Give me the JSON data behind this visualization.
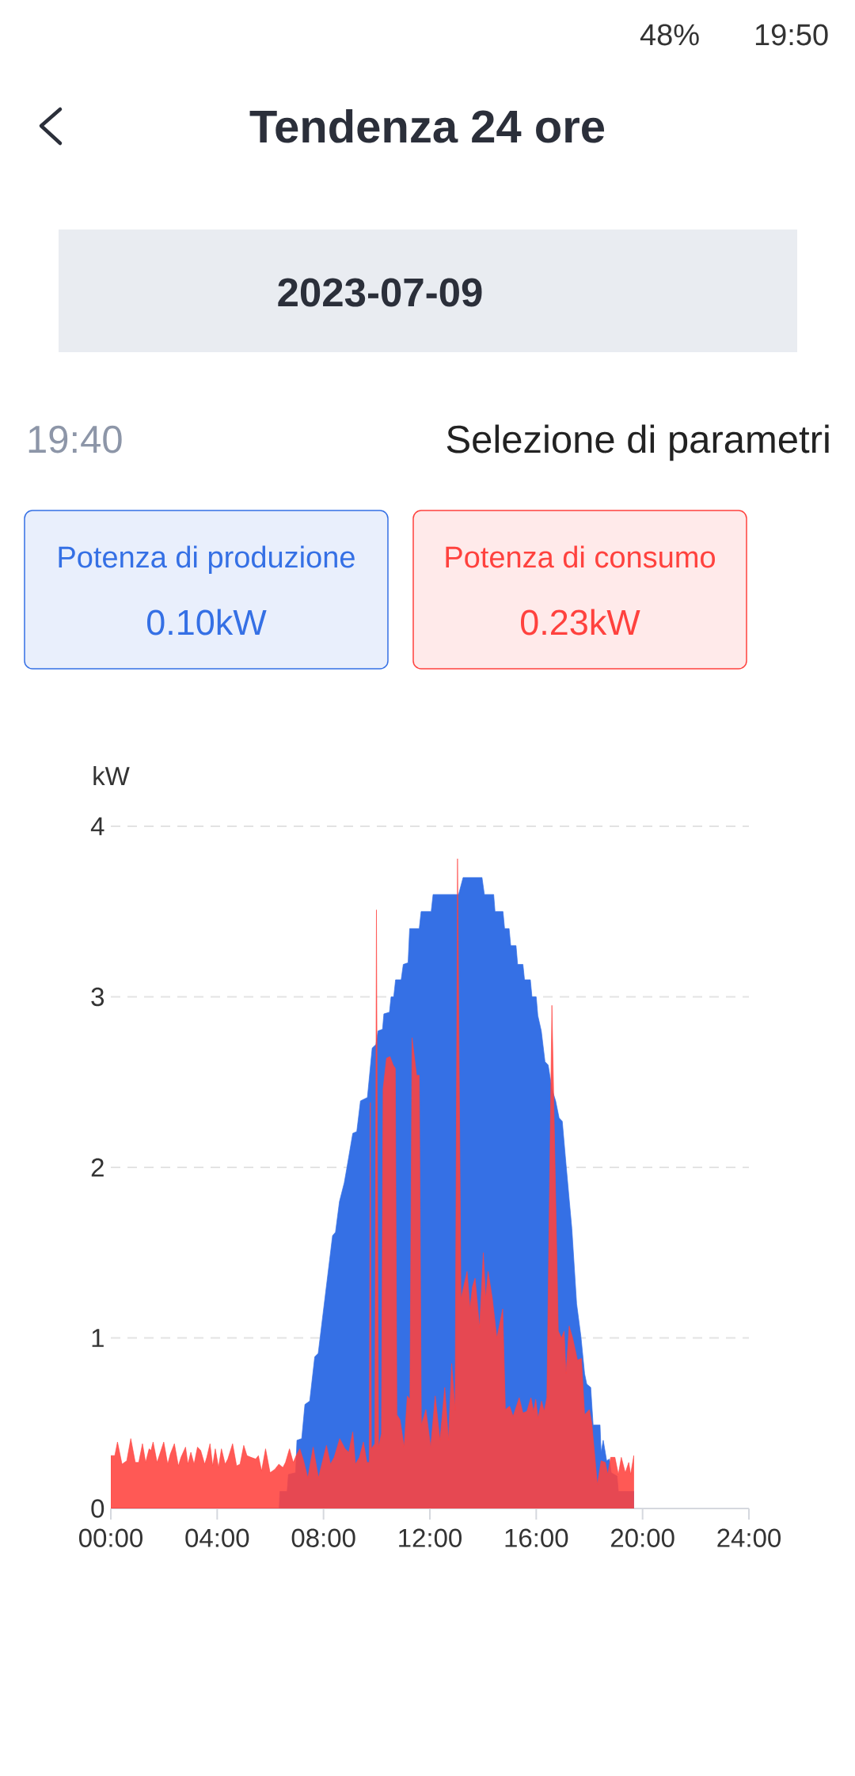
{
  "chart_data": {
    "type": "area",
    "title": "Tendenza 24 ore",
    "subtitle": "2023-07-09",
    "ylabel": "kW",
    "annotations": [
      "48%",
      "19:50",
      "19:40",
      "Selezione di parametri",
      "0.10kW",
      "0.23kW"
    ],
    "xlim": [
      0,
      24
    ],
    "xticks": [
      {
        "value": 0,
        "label": "00:00"
      },
      {
        "value": 4,
        "label": "04:00"
      },
      {
        "value": 8,
        "label": "08:00"
      },
      {
        "value": 12,
        "label": "12:00"
      },
      {
        "value": 16,
        "label": "16:00"
      },
      {
        "value": 20,
        "label": "20:00"
      },
      {
        "value": 24,
        "label": "24:00"
      }
    ],
    "ylim": [
      0,
      4
    ],
    "yticks": [
      0,
      1,
      2,
      3,
      4
    ],
    "grid": "y",
    "legend": "top",
    "series": [
      {
        "name": "Potenza di produzione",
        "color": "#3570e5",
        "x": [
          0,
          6.33,
          6.36,
          6.63,
          6.68,
          6.95,
          7.0,
          7.18,
          7.3,
          7.48,
          7.67,
          7.8,
          8.34,
          8.45,
          8.6,
          8.78,
          8.87,
          9.1,
          9.25,
          9.39,
          9.65,
          9.83,
          9.97,
          10.05,
          10.22,
          10.27,
          10.48,
          10.54,
          10.64,
          10.71,
          10.92,
          11.0,
          11.18,
          11.24,
          11.6,
          11.67,
          12.05,
          12.12,
          13.08,
          13.25,
          13.96,
          14.05,
          14.4,
          14.45,
          14.75,
          14.81,
          14.98,
          15.04,
          15.24,
          15.3,
          15.5,
          15.56,
          15.78,
          15.84,
          16.0,
          16.06,
          16.19,
          16.33,
          16.45,
          16.59,
          16.73,
          16.86,
          16.98,
          17.12,
          17.34,
          17.52,
          17.68,
          17.82,
          17.9,
          18.05,
          18.14,
          18.4,
          18.44,
          18.52,
          18.65,
          18.75,
          18.82,
          19.04,
          19.09,
          19.67
        ],
        "values": [
          0,
          0,
          0.1,
          0.1,
          0.2,
          0.21,
          0.4,
          0.41,
          0.61,
          0.63,
          0.89,
          0.91,
          1.6,
          1.62,
          1.8,
          1.91,
          1.99,
          2.2,
          2.21,
          2.39,
          2.41,
          2.7,
          2.72,
          2.8,
          2.81,
          2.9,
          2.91,
          3.0,
          3.0,
          3.1,
          3.1,
          3.19,
          3.2,
          3.4,
          3.4,
          3.5,
          3.5,
          3.6,
          3.6,
          3.7,
          3.7,
          3.6,
          3.6,
          3.5,
          3.5,
          3.4,
          3.4,
          3.3,
          3.3,
          3.19,
          3.19,
          3.1,
          3.1,
          3.0,
          3.0,
          2.89,
          2.8,
          2.62,
          2.6,
          2.46,
          2.39,
          2.29,
          2.27,
          2.02,
          1.64,
          1.2,
          1.01,
          0.79,
          0.73,
          0.71,
          0.49,
          0.49,
          0.33,
          0.4,
          0.28,
          0.29,
          0.21,
          0.19,
          0.1,
          0.1
        ]
      },
      {
        "name": "Potenza di consumo",
        "color": "#ff423e",
        "x": [
          0,
          0.15,
          0.25,
          0.42,
          0.6,
          0.75,
          0.92,
          1.05,
          1.19,
          1.31,
          1.44,
          1.51,
          1.59,
          1.74,
          1.99,
          2.14,
          2.24,
          2.39,
          2.54,
          2.64,
          2.81,
          2.9,
          3.01,
          3.13,
          3.26,
          3.38,
          3.53,
          3.61,
          3.73,
          3.83,
          3.93,
          4.05,
          4.16,
          4.3,
          4.4,
          4.58,
          4.73,
          4.86,
          5.0,
          5.12,
          5.27,
          5.45,
          5.55,
          5.67,
          5.82,
          5.99,
          6.17,
          6.32,
          6.47,
          6.57,
          6.72,
          6.86,
          6.97,
          7.11,
          7.25,
          7.41,
          7.61,
          7.81,
          7.95,
          8.11,
          8.26,
          8.4,
          8.61,
          8.81,
          8.95,
          9.1,
          9.2,
          9.35,
          9.5,
          9.63,
          9.72,
          9.76,
          9.8,
          9.93,
          9.99,
          10.07,
          10.18,
          10.24,
          10.37,
          10.5,
          10.62,
          10.7,
          10.76,
          10.88,
          11.03,
          11.15,
          11.25,
          11.33,
          11.5,
          11.6,
          11.68,
          11.85,
          12.03,
          12.2,
          12.38,
          12.56,
          12.7,
          12.82,
          12.95,
          13.04,
          13.17,
          13.4,
          13.51,
          13.6,
          13.7,
          13.87,
          14.01,
          14.1,
          14.19,
          14.35,
          14.52,
          14.74,
          14.84,
          15.0,
          15.13,
          15.36,
          15.5,
          15.65,
          15.8,
          15.9,
          15.98,
          16.07,
          16.2,
          16.3,
          16.4,
          16.59,
          16.83,
          16.95,
          17.05,
          17.12,
          17.24,
          17.37,
          17.55,
          17.7,
          17.82,
          18.0,
          18.09,
          18.3,
          18.44,
          18.6,
          18.69,
          18.8,
          18.96,
          19.09,
          19.2,
          19.35,
          19.48,
          19.55,
          19.67
        ],
        "values": [
          0.31,
          0.31,
          0.39,
          0.26,
          0.28,
          0.41,
          0.27,
          0.27,
          0.38,
          0.27,
          0.35,
          0.34,
          0.39,
          0.27,
          0.39,
          0.26,
          0.32,
          0.38,
          0.25,
          0.3,
          0.36,
          0.26,
          0.33,
          0.26,
          0.36,
          0.34,
          0.26,
          0.3,
          0.38,
          0.25,
          0.35,
          0.24,
          0.35,
          0.26,
          0.29,
          0.38,
          0.25,
          0.26,
          0.37,
          0.31,
          0.3,
          0.29,
          0.31,
          0.22,
          0.35,
          0.21,
          0.23,
          0.26,
          0.24,
          0.27,
          0.35,
          0.27,
          0.31,
          0.35,
          0.28,
          0.18,
          0.36,
          0.18,
          0.27,
          0.37,
          0.26,
          0.3,
          0.41,
          0.35,
          0.33,
          0.45,
          0.26,
          0.3,
          0.39,
          0.27,
          0.27,
          2.38,
          0.35,
          0.38,
          3.51,
          0.36,
          0.44,
          2.46,
          2.64,
          2.65,
          2.6,
          2.58,
          0.55,
          0.52,
          0.36,
          0.66,
          0.64,
          2.76,
          2.54,
          2.54,
          0.49,
          0.58,
          0.36,
          0.66,
          0.4,
          0.71,
          0.4,
          0.85,
          0.58,
          3.81,
          1.23,
          1.39,
          1.17,
          1.3,
          1.35,
          1.06,
          1.5,
          1.23,
          1.39,
          1.23,
          1.0,
          1.17,
          0.58,
          0.6,
          0.54,
          0.65,
          0.56,
          0.57,
          0.65,
          0.57,
          0.64,
          0.53,
          0.63,
          0.57,
          0.65,
          2.95,
          1.04,
          1.0,
          1.04,
          0.79,
          1.07,
          1.0,
          0.87,
          0.88,
          0.55,
          0.58,
          0.5,
          0.14,
          0.28,
          0.27,
          0.2,
          0.3,
          0.3,
          0.2,
          0.3,
          0.21,
          0.27,
          0.2,
          0.31
        ]
      }
    ]
  }
}
